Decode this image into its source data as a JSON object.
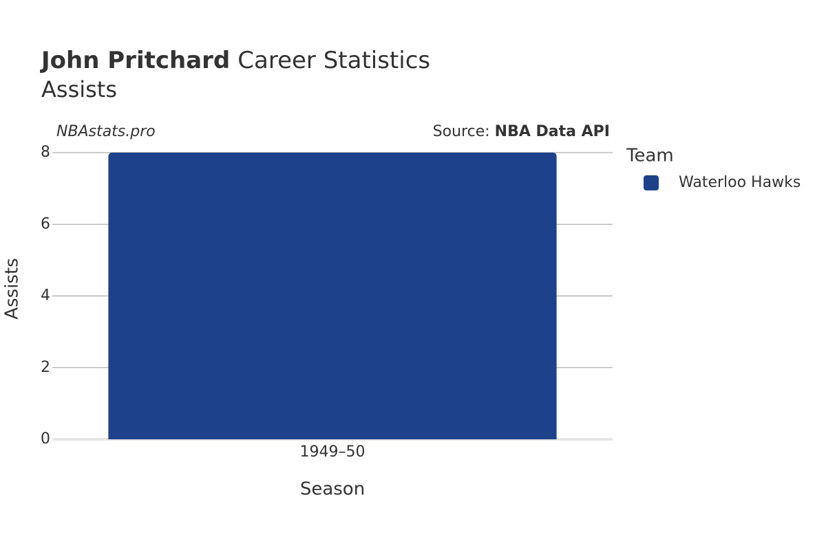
{
  "chart_data": {
    "type": "bar",
    "title": {
      "name": "John Pritchard",
      "text": "Career Statistics"
    },
    "subtitle": "Assists",
    "watermark": "NBAstats.pro",
    "source_label": "Source:",
    "source": "NBA Data API",
    "x_label": "Season",
    "y_label": "Assists",
    "legend_title": "Team",
    "categories": [
      "1949–50"
    ],
    "series": [
      {
        "name": "Waterloo Hawks",
        "color": "#1d428a",
        "values": [
          8
        ]
      }
    ],
    "ylim": [
      0,
      8
    ],
    "yticks": [
      0,
      2,
      4,
      6,
      8
    ],
    "grid": true,
    "legend": "right"
  }
}
